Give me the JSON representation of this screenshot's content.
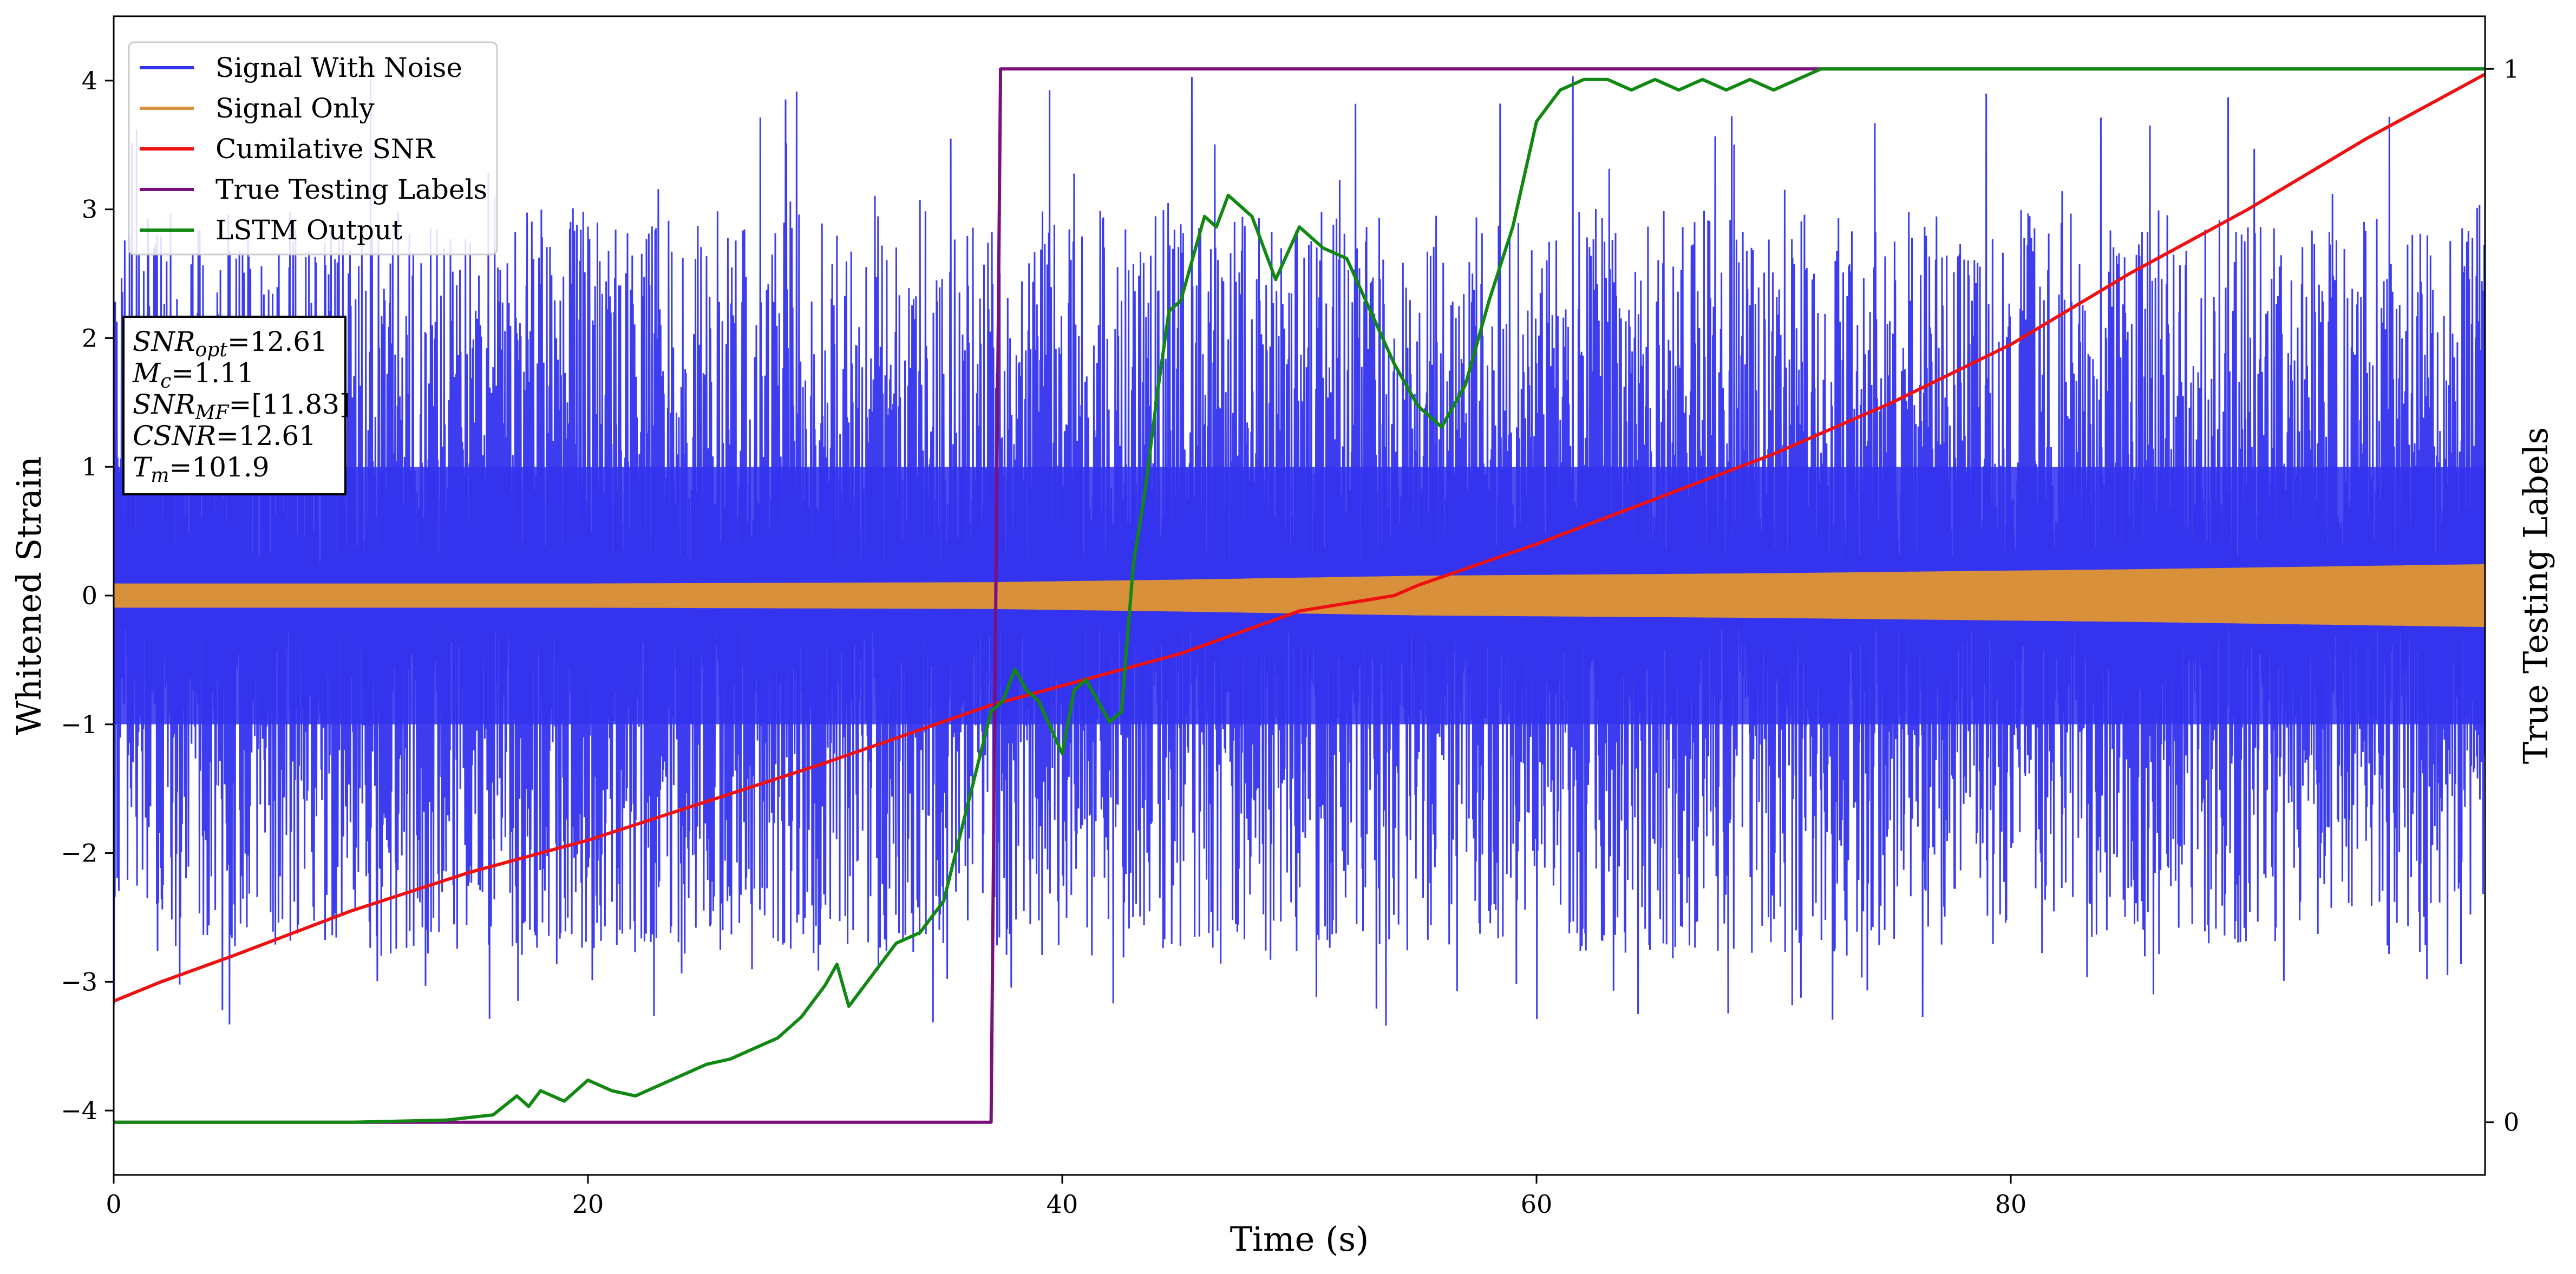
{
  "chart_data": {
    "type": "line",
    "xlabel": "Time (s)",
    "ylabel": "Whitened Strain",
    "ylabel_right": "True Testing Labels",
    "xlim": [
      0,
      100
    ],
    "ylim": [
      -4.5,
      4.5
    ],
    "ylim_right": [
      -0.05,
      1.05
    ],
    "x_ticks": [
      0,
      20,
      40,
      60,
      80
    ],
    "y_ticks": [
      -4,
      -3,
      -2,
      -1,
      0,
      1,
      2,
      3,
      4
    ],
    "y_ticks_right": [
      0,
      1
    ],
    "grid": false,
    "legend_position": "top-left",
    "legend": [
      "Signal With Noise",
      "Signal Only",
      "Cumilative SNR",
      "True Testing Labels",
      "LSTM Output"
    ],
    "annotation": {
      "lines": [
        {
          "base": "SNR",
          "sub": "opt",
          "rest": "=12.61"
        },
        {
          "base": "M",
          "sub": "c",
          "rest": "=1.11"
        },
        {
          "base": "SNR",
          "sub": "MF",
          "rest": "=[11.83]"
        },
        {
          "base": "CSNR",
          "sub": "",
          "rest": "=12.61"
        },
        {
          "base": "T",
          "sub": "m",
          "rest": "=101.9"
        }
      ]
    },
    "series": [
      {
        "name": "Signal With Noise",
        "axis": "left",
        "color": "#3333ee",
        "kind": "noise",
        "description_values": {
          "typical_min": -2.8,
          "typical_max": 3.0,
          "extreme_min": -3.35,
          "extreme_max": 4.05
        }
      },
      {
        "name": "Signal Only",
        "axis": "left",
        "color": "#d9903a",
        "kind": "envelope",
        "x": [
          0,
          20,
          37,
          45,
          55,
          70,
          85,
          100
        ],
        "values": [
          0.09,
          0.09,
          0.1,
          0.12,
          0.15,
          0.17,
          0.2,
          0.24
        ]
      },
      {
        "name": "Cumilative SNR",
        "axis": "left",
        "color": "#ee1111",
        "x": [
          0,
          2,
          5,
          10,
          15,
          20,
          25,
          30,
          37,
          40,
          45,
          50,
          54,
          55,
          60,
          65,
          70,
          75,
          80,
          85,
          90,
          95,
          100
        ],
        "values": [
          -3.15,
          -3.0,
          -2.8,
          -2.45,
          -2.15,
          -1.9,
          -1.6,
          -1.3,
          -0.85,
          -0.7,
          -0.45,
          -0.12,
          0.0,
          0.08,
          0.4,
          0.75,
          1.1,
          1.5,
          1.95,
          2.5,
          3.0,
          3.55,
          4.05
        ]
      },
      {
        "name": "True Testing Labels",
        "axis": "right",
        "color": "#7b0f7b",
        "x": [
          0,
          37.0,
          37.4,
          100
        ],
        "values": [
          0,
          0,
          1,
          1
        ]
      },
      {
        "name": "LSTM Output",
        "axis": "right",
        "color": "#118811",
        "x": [
          0,
          10,
          14,
          16,
          17,
          17.5,
          18,
          19,
          20,
          21,
          22,
          23,
          24,
          25,
          26,
          27,
          28,
          29,
          30,
          30.5,
          31,
          32,
          33,
          34,
          35,
          36,
          37,
          37.5,
          38,
          38.5,
          39,
          40,
          40.5,
          41,
          42,
          42.5,
          43,
          43.5,
          44,
          44.5,
          45,
          46,
          46.5,
          47,
          48,
          49,
          50,
          51,
          52,
          53,
          54,
          55,
          56,
          57,
          58,
          59,
          60,
          61,
          62,
          63,
          64,
          65,
          66,
          67,
          68,
          69,
          70,
          71,
          72,
          74,
          76,
          80,
          100
        ],
        "values": [
          0,
          0,
          0.002,
          0.007,
          0.025,
          0.015,
          0.03,
          0.02,
          0.04,
          0.03,
          0.025,
          0.035,
          0.045,
          0.055,
          0.06,
          0.07,
          0.08,
          0.1,
          0.13,
          0.15,
          0.11,
          0.14,
          0.17,
          0.18,
          0.21,
          0.3,
          0.39,
          0.4,
          0.43,
          0.41,
          0.4,
          0.35,
          0.41,
          0.42,
          0.38,
          0.39,
          0.53,
          0.6,
          0.69,
          0.77,
          0.78,
          0.86,
          0.85,
          0.88,
          0.86,
          0.8,
          0.85,
          0.83,
          0.82,
          0.77,
          0.72,
          0.68,
          0.66,
          0.7,
          0.78,
          0.85,
          0.95,
          0.98,
          0.99,
          0.99,
          0.98,
          0.99,
          0.98,
          0.99,
          0.98,
          0.99,
          0.98,
          0.99,
          1.0,
          1.0,
          1.0,
          1.0,
          1.0
        ]
      }
    ]
  }
}
